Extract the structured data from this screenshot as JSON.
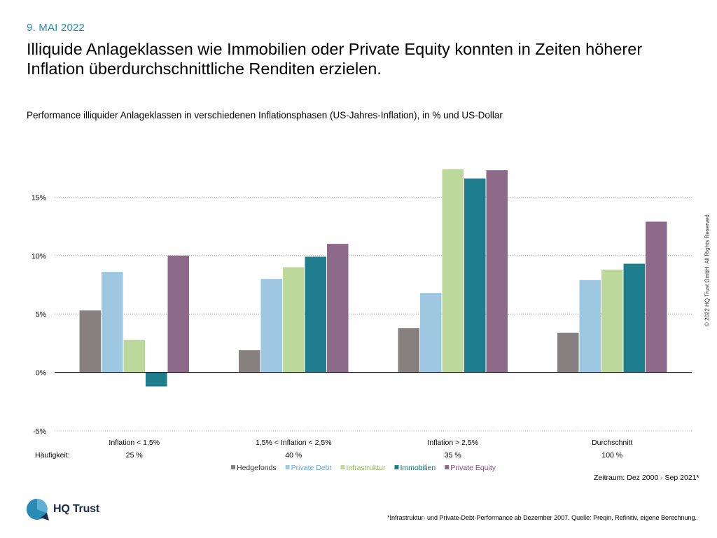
{
  "header": {
    "date": "9. MAI 2022",
    "title": "Illiquide Anlageklassen wie Immobilien oder Private Equity konnten in Zeiten höherer Inflation überdurchschnittliche Renditen erzielen.",
    "subtitle": "Performance illiquider Anlageklassen in verschiedenen Inflationsphasen (US-Jahres-Inflation), in % und US-Dollar"
  },
  "copyright": "© 2022 HQ Trust GmbH. All Rights Reserved.",
  "chart_data": {
    "type": "bar",
    "title": "Performance illiquider Anlageklassen in verschiedenen Inflationsphasen (US-Jahres-Inflation), in % und US-Dollar",
    "categories": [
      "Inflation < 1,5%",
      "1,5% < Inflation < 2,5%",
      "Inflation > 2,5%",
      "Durchschnitt"
    ],
    "frequency_label": "Häufigkeit:",
    "frequencies": [
      "25 %",
      "40 %",
      "35 %",
      "100 %"
    ],
    "ylim": [
      -5,
      20
    ],
    "yticks": [
      -5,
      0,
      5,
      10,
      15
    ],
    "ytick_labels": [
      "-5%",
      "0%",
      "5%",
      "10%",
      "15%"
    ],
    "grid": true,
    "legend_position": "bottom",
    "series": [
      {
        "name": "Hedgefonds",
        "color": "#878081",
        "values": [
          5.3,
          1.9,
          3.8,
          3.4
        ]
      },
      {
        "name": "Private Debt",
        "color": "#9ec8e2",
        "values": [
          8.6,
          8.0,
          6.8,
          7.9
        ]
      },
      {
        "name": "Infrastruktur",
        "color": "#bcd89b",
        "values": [
          2.8,
          9.0,
          17.4,
          8.8
        ]
      },
      {
        "name": "Immobilien",
        "color": "#1e7e8e",
        "values": [
          -1.2,
          9.9,
          16.6,
          9.3
        ]
      },
      {
        "name": "Private Equity",
        "color": "#8d6a8a",
        "values": [
          10.0,
          11.0,
          17.3,
          12.9
        ]
      }
    ],
    "legend_text_colors": [
      "#333333",
      "#5aa9d6",
      "#8dba5a",
      "#0e6b78",
      "#7a4f78"
    ]
  },
  "period": "Zeitraum: Dez 2000 - Sep 2021*",
  "logo": {
    "text": "HQ Trust"
  },
  "footnote": "*Infrastruktur- und Private-Debt-Performance ab Dezember 2007. Quelle: Preqin, Refinitiv, eigene Berechnung."
}
